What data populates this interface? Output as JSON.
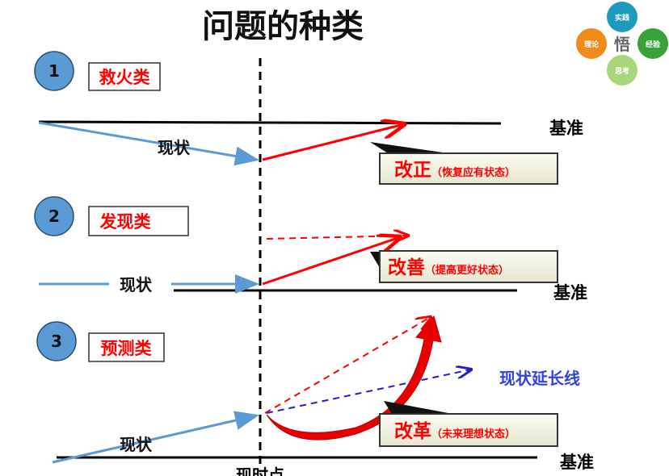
{
  "title": "问题的种类",
  "logo": {
    "center": "悟",
    "items": [
      "实践",
      "经验",
      "思考",
      "理论"
    ]
  },
  "colors": {
    "red": "#ff0000",
    "blue_arrow": "#5b9bd5",
    "dashed_blue": "#1f1fcc",
    "circle": "#5b9bd5",
    "extension_text": "#3344dd"
  },
  "sections": [
    {
      "number": "1",
      "label": "救火类",
      "status": "现状",
      "baseline": "基准",
      "callout_main": "改正",
      "callout_sub": "（恢复应有状态）"
    },
    {
      "number": "2",
      "label": "发现类",
      "status": "现状",
      "baseline": "基准",
      "callout_main": "改善",
      "callout_sub": "（提高更好状态）"
    },
    {
      "number": "3",
      "label": "预测类",
      "status": "现状",
      "baseline": "基准",
      "callout_main": "改革",
      "callout_sub": "（未来理想状态）",
      "extension": "现状延长线"
    }
  ],
  "now_point": "现时点"
}
